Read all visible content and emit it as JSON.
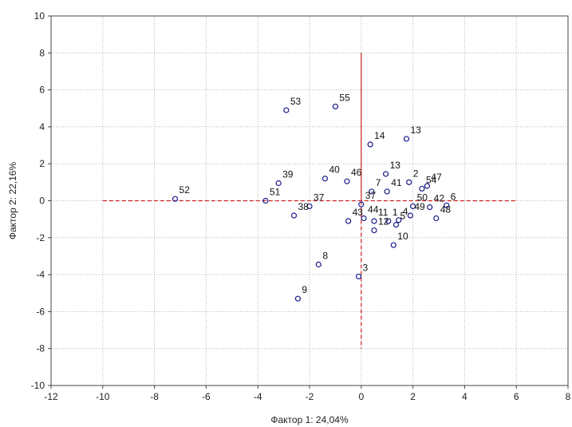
{
  "chart_data": {
    "type": "scatter",
    "xlabel": "Фактор 1: 24,04%",
    "ylabel": "Фактор 2: 22,16%",
    "xlim": [
      -12,
      8
    ],
    "ylim": [
      -10,
      10
    ],
    "xticks": [
      "-12",
      "-10",
      "-8",
      "-6",
      "-4",
      "-2",
      "0",
      "2",
      "4",
      "6",
      "8"
    ],
    "yticks": [
      "10",
      "8",
      "6",
      "4",
      "2",
      "0",
      "-2",
      "-4",
      "-6",
      "-8",
      "-10"
    ],
    "grid": true,
    "marker": "open-circle",
    "marker_color": "#1a1a8c",
    "reference_lines": [
      {
        "orientation": "horizontal",
        "y": 0,
        "x_range": [
          -10,
          6
        ],
        "style": "dashed",
        "color": "#cc2222"
      },
      {
        "orientation": "vertical",
        "x": 0,
        "y_range": [
          -8,
          8
        ],
        "style": "solid-upper-dashed-lower",
        "color": "#cc2222"
      }
    ],
    "points": [
      {
        "label": "53",
        "x": -2.9,
        "y": 4.9
      },
      {
        "label": "55",
        "x": -1.0,
        "y": 5.1
      },
      {
        "label": "14",
        "x": 0.35,
        "y": 3.05
      },
      {
        "label": "13",
        "x": 1.75,
        "y": 3.35
      },
      {
        "label": "52",
        "x": -7.2,
        "y": 0.1
      },
      {
        "label": "39",
        "x": -3.2,
        "y": 0.95
      },
      {
        "label": "40",
        "x": -1.4,
        "y": 1.2
      },
      {
        "label": "46",
        "x": -0.55,
        "y": 1.05
      },
      {
        "label": "13",
        "x": 0.95,
        "y": 1.45
      },
      {
        "label": "2",
        "x": 1.85,
        "y": 1.0
      },
      {
        "label": "54",
        "x": 2.35,
        "y": 0.65
      },
      {
        "label": "47",
        "x": 2.55,
        "y": 0.8
      },
      {
        "label": "7",
        "x": 0.4,
        "y": 0.5
      },
      {
        "label": "41",
        "x": 1.0,
        "y": 0.5
      },
      {
        "label": "51",
        "x": -3.7,
        "y": 0.0
      },
      {
        "label": "37",
        "x": -2.0,
        "y": -0.3
      },
      {
        "label": "37",
        "x": 0.0,
        "y": -0.2
      },
      {
        "label": "50",
        "x": 2.0,
        "y": -0.3
      },
      {
        "label": "42",
        "x": 2.65,
        "y": -0.35
      },
      {
        "label": "6",
        "x": 3.3,
        "y": -0.25
      },
      {
        "label": "44",
        "x": 0.1,
        "y": -0.95
      },
      {
        "label": "11",
        "x": 0.5,
        "y": -1.1
      },
      {
        "label": "1",
        "x": 1.05,
        "y": -1.1
      },
      {
        "label": "4",
        "x": 1.45,
        "y": -1.05
      },
      {
        "label": "49",
        "x": 1.9,
        "y": -0.8
      },
      {
        "label": "38",
        "x": -2.6,
        "y": -0.8
      },
      {
        "label": "43",
        "x": -0.5,
        "y": -1.1
      },
      {
        "label": "5",
        "x": 1.35,
        "y": -1.3
      },
      {
        "label": "48",
        "x": 2.9,
        "y": -0.95
      },
      {
        "label": "12",
        "x": 0.5,
        "y": -1.6
      },
      {
        "label": "10",
        "x": 1.25,
        "y": -2.4
      },
      {
        "label": "8",
        "x": -1.65,
        "y": -3.45
      },
      {
        "label": "3",
        "x": -0.1,
        "y": -4.1
      },
      {
        "label": "9",
        "x": -2.45,
        "y": -5.3
      }
    ]
  }
}
